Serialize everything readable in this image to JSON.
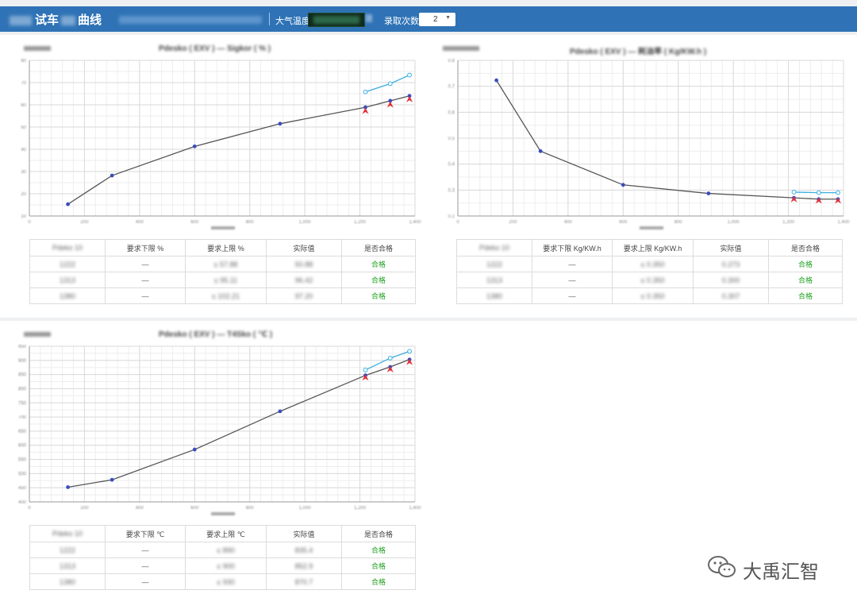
{
  "header": {
    "title_main": "试车",
    "title_suffix": "曲线",
    "temp_label": "大气温度",
    "count_label": "录取次数",
    "count_value": "2",
    "bar_color": "#2f73b6"
  },
  "charts": [
    {
      "title": "Pdesko ( EXV ) — Sigkor ( % )",
      "table": {
        "headers": [
          "Pdeko 10",
          "要求下限 %",
          "要求上限 %",
          "实际值",
          "是否合格"
        ],
        "rows": [
          [
            "1222",
            "—",
            "≤ 57.88",
            "50.88",
            "合格"
          ],
          [
            "1313",
            "—",
            "≤ 95.11",
            "96.42",
            "合格"
          ],
          [
            "1380",
            "—",
            "≤ 102.21",
            "97.20",
            "合格"
          ]
        ]
      }
    },
    {
      "title": "Pdesko ( EXV ) — 耗油率 ( Kg/KW.h )",
      "table": {
        "headers": [
          "Pdeko 10",
          "要求下限 Kg/KW.h",
          "要求上限 Kg/KW.h",
          "实际值",
          "是否合格"
        ],
        "rows": [
          [
            "1222",
            "—",
            "≤ 0.350",
            "0.273",
            "合格"
          ],
          [
            "1313",
            "—",
            "≤ 0.350",
            "0.300",
            "合格"
          ],
          [
            "1380",
            "—",
            "≤ 0.350",
            "0.307",
            "合格"
          ]
        ]
      }
    },
    {
      "title": "Pdesko ( EXV ) — T4Sko ( ℃ )",
      "table": {
        "headers": [
          "Pdeko 10",
          "要求下限 ℃",
          "要求上限 ℃",
          "实际值",
          "是否合格"
        ],
        "rows": [
          [
            "1222",
            "—",
            "≤ 890",
            "835.4",
            "合格"
          ],
          [
            "1313",
            "—",
            "≤ 900",
            "852.9",
            "合格"
          ],
          [
            "1380",
            "—",
            "≤ 930",
            "870.7",
            "合格"
          ]
        ]
      }
    }
  ],
  "chart_data": [
    {
      "type": "line",
      "xlim": [
        0,
        1400
      ],
      "ylim": [
        10,
        80
      ],
      "x_ticks": [
        0,
        200,
        400,
        600,
        800,
        1000,
        1200,
        1400
      ],
      "y_ticks": [
        10,
        20,
        30,
        40,
        50,
        60,
        70,
        80
      ],
      "grid": true,
      "series": [
        {
          "color": "#555555",
          "marker": "#3a4cc0",
          "x": [
            140,
            300,
            600,
            910,
            1220,
            1310,
            1380
          ],
          "y": [
            15.3,
            28.2,
            41.3,
            51.5,
            58.9,
            61.8,
            64.0
          ]
        },
        {
          "color": "#3aaee0",
          "marker": "open",
          "x": [
            1220,
            1310,
            1380
          ],
          "y": [
            65.8,
            69.5,
            73.4
          ]
        },
        {
          "color": "#e0303a",
          "marker": "arrow",
          "x": [
            1220,
            1310,
            1380
          ],
          "y": [
            57.3,
            60.2,
            62.6
          ]
        }
      ]
    },
    {
      "type": "line",
      "xlim": [
        0,
        1400
      ],
      "ylim": [
        0.2,
        0.8
      ],
      "x_ticks": [
        0,
        200,
        400,
        600,
        800,
        1000,
        1200,
        1400
      ],
      "y_ticks": [
        0.2,
        0.3,
        0.4,
        0.5,
        0.6,
        0.7,
        0.8
      ],
      "grid": true,
      "series": [
        {
          "color": "#555555",
          "marker": "#3a4cc0",
          "x": [
            140,
            300,
            600,
            910,
            1220,
            1310,
            1380
          ],
          "y": [
            0.723,
            0.45,
            0.32,
            0.287,
            0.27,
            0.265,
            0.265
          ]
        },
        {
          "color": "#3aaee0",
          "marker": "open",
          "x": [
            1220,
            1310,
            1380
          ],
          "y": [
            0.292,
            0.29,
            0.29
          ]
        },
        {
          "color": "#e0303a",
          "marker": "arrow",
          "x": [
            1220,
            1310,
            1380
          ],
          "y": [
            0.265,
            0.26,
            0.26
          ]
        }
      ]
    },
    {
      "type": "line",
      "xlim": [
        0,
        1400
      ],
      "ylim": [
        400,
        950
      ],
      "x_ticks": [
        0,
        200,
        400,
        600,
        800,
        1000,
        1200,
        1400
      ],
      "y_ticks": [
        400,
        450,
        500,
        550,
        600,
        650,
        700,
        750,
        800,
        850,
        900,
        950
      ],
      "grid": true,
      "series": [
        {
          "color": "#555555",
          "marker": "#3a4cc0",
          "x": [
            140,
            300,
            600,
            910,
            1220,
            1310,
            1380
          ],
          "y": [
            452,
            478,
            585,
            720,
            847,
            877,
            903
          ]
        },
        {
          "color": "#3aaee0",
          "marker": "open",
          "x": [
            1220,
            1310,
            1380
          ],
          "y": [
            866,
            908,
            932
          ]
        },
        {
          "color": "#e0303a",
          "marker": "arrow",
          "x": [
            1220,
            1310,
            1380
          ],
          "y": [
            840,
            869,
            895
          ]
        }
      ]
    }
  ],
  "watermark": {
    "text": "大禹汇智"
  }
}
